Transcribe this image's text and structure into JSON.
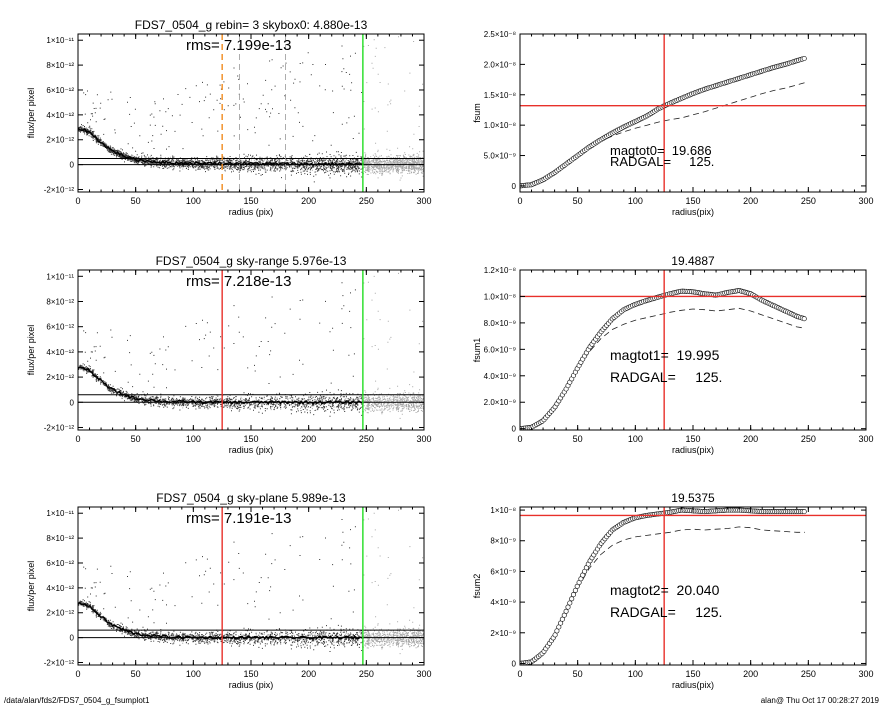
{
  "footer": {
    "left": "/data/alan/fds2/FDS7_0504_g_fsumplot1",
    "right": "alan@  Thu Oct 17 00:28:27 2019"
  },
  "colors": {
    "red": "#e8302a",
    "green": "#22dd22",
    "orange": "#f08a1e",
    "scatter_dark": "#333333",
    "scatter_gray": "#a8a8a8",
    "profile": "#000000"
  },
  "chart_data": [
    {
      "id": "flux-top",
      "type": "scatter",
      "title": "FDS7_0504_g rebin= 3    skybox0:  4.880e-13",
      "annotation": "rms= 7.199e-13",
      "xlabel": "radius (pix)",
      "ylabel": "flux/per pixel",
      "xlim": [
        0,
        300
      ],
      "ylim": [
        -2.2e-12,
        1.05e-11
      ],
      "xticks": [
        0,
        50,
        100,
        150,
        200,
        250,
        300
      ],
      "yticks": [
        -2e-12,
        0,
        2e-12,
        4e-12,
        6e-12,
        8e-12,
        1e-11
      ],
      "ytick_labels": [
        "-2×10⁻¹²",
        "0",
        "2×10⁻¹²",
        "4×10⁻¹²",
        "6×10⁻¹²",
        "8×10⁻¹²",
        "1×10⁻¹¹"
      ],
      "hlines": [
        4.88e-13,
        0
      ],
      "vlines": [
        {
          "x": 125,
          "color": "orange",
          "style": "dashed"
        },
        {
          "x": 140,
          "color": "gray",
          "style": "dashed"
        },
        {
          "x": 180,
          "color": "gray",
          "style": "dashed"
        },
        {
          "x": 247,
          "color": "green",
          "style": "solid"
        }
      ],
      "profile_x": [
        0,
        5,
        10,
        15,
        20,
        25,
        30,
        40,
        50,
        60,
        70,
        80,
        100,
        120,
        150,
        180,
        200,
        247
      ],
      "profile_y": [
        2.9e-12,
        2.8e-12,
        2.6e-12,
        2.2e-12,
        1.8e-12,
        1.4e-12,
        1.1e-12,
        7e-13,
        4e-13,
        3e-13,
        2e-13,
        1.5e-13,
        1e-13,
        1e-13,
        8e-14,
        6e-14,
        5e-14,
        4e-14
      ]
    },
    {
      "id": "fsum-top",
      "type": "line",
      "title": "",
      "annotation_lines": [
        "magtot0=  19.686",
        "RADGAL=     125."
      ],
      "xlabel": "radius(pix)",
      "ylabel": "fsum",
      "xlim": [
        0,
        300
      ],
      "ylim": [
        -1e-09,
        2.5e-08
      ],
      "xticks": [
        0,
        50,
        100,
        150,
        200,
        250,
        300
      ],
      "yticks": [
        0,
        5e-09,
        1e-08,
        1.5e-08,
        2e-08,
        2.5e-08
      ],
      "ytick_labels": [
        "0",
        "5.0×10⁻⁹",
        "1.0×10⁻⁸",
        "1.5×10⁻⁸",
        "2.0×10⁻⁸",
        "2.5×10⁻⁸"
      ],
      "hline": 1.32e-08,
      "vline": 125,
      "x": [
        0,
        10,
        20,
        30,
        40,
        50,
        60,
        70,
        80,
        90,
        100,
        110,
        120,
        130,
        140,
        150,
        160,
        170,
        180,
        190,
        200,
        210,
        220,
        230,
        240,
        247
      ],
      "y": [
        0,
        2e-10,
        1e-09,
        2.2e-09,
        3.6e-09,
        5e-09,
        6.4e-09,
        7.6e-09,
        8.7e-09,
        9.7e-09,
        1.06e-08,
        1.15e-08,
        1.27e-08,
        1.36e-08,
        1.44e-08,
        1.52e-08,
        1.59e-08,
        1.65e-08,
        1.71e-08,
        1.77e-08,
        1.83e-08,
        1.89e-08,
        1.95e-08,
        2e-08,
        2.06e-08,
        2.1e-08
      ],
      "y_dashed": [
        0,
        2e-10,
        1e-09,
        2.2e-09,
        3.6e-09,
        5e-09,
        6.3e-09,
        7.4e-09,
        8.2e-09,
        8.9e-09,
        9.5e-09,
        1e-08,
        1.05e-08,
        1.09e-08,
        1.12e-08,
        1.17e-08,
        1.22e-08,
        1.28e-08,
        1.34e-08,
        1.4e-08,
        1.46e-08,
        1.52e-08,
        1.57e-08,
        1.61e-08,
        1.66e-08,
        1.7e-08
      ]
    },
    {
      "id": "flux-mid",
      "type": "scatter",
      "title": "FDS7_0504_g sky-range  5.976e-13",
      "annotation": "rms= 7.218e-13",
      "xlabel": "radius (pix)",
      "ylabel": "flux/per pixel",
      "xlim": [
        0,
        300
      ],
      "ylim": [
        -2.2e-12,
        1.05e-11
      ],
      "xticks": [
        0,
        50,
        100,
        150,
        200,
        250,
        300
      ],
      "yticks": [
        -2e-12,
        0,
        2e-12,
        4e-12,
        6e-12,
        8e-12,
        1e-11
      ],
      "ytick_labels": [
        "-2×10⁻¹²",
        "0",
        "2×10⁻¹²",
        "4×10⁻¹²",
        "6×10⁻¹²",
        "8×10⁻¹²",
        "1×10⁻¹¹"
      ],
      "hlines": [
        5.976e-13,
        0
      ],
      "vlines": [
        {
          "x": 125,
          "color": "red",
          "style": "solid"
        },
        {
          "x": 247,
          "color": "green",
          "style": "solid"
        }
      ],
      "profile_x": [
        0,
        5,
        10,
        15,
        20,
        25,
        30,
        40,
        50,
        60,
        70,
        80,
        100,
        120,
        150,
        180,
        200,
        247
      ],
      "profile_y": [
        2.8e-12,
        2.7e-12,
        2.5e-12,
        2.1e-12,
        1.7e-12,
        1.3e-12,
        1e-12,
        6e-13,
        3e-13,
        2e-13,
        1e-13,
        5e-14,
        1e-14,
        0,
        0,
        0,
        0,
        0
      ]
    },
    {
      "id": "fsum-mid",
      "type": "line",
      "title": "19.4887",
      "annotation_lines": [
        "magtot1=  19.995",
        "RADGAL=     125."
      ],
      "xlabel": "radius(pix)",
      "ylabel": "fsum1",
      "xlim": [
        0,
        300
      ],
      "ylim": [
        -1e-10,
        1.2e-08
      ],
      "xticks": [
        0,
        50,
        100,
        150,
        200,
        250,
        300
      ],
      "yticks": [
        0,
        2e-09,
        4e-09,
        6e-09,
        8e-09,
        1e-08,
        1.2e-08
      ],
      "ytick_labels": [
        "0",
        "2.0×10⁻⁹",
        "4.0×10⁻⁹",
        "6.0×10⁻⁹",
        "8.0×10⁻⁹",
        "1.0×10⁻⁸",
        "1.2×10⁻⁸"
      ],
      "hline": 1e-08,
      "vline": 125,
      "x": [
        0,
        10,
        20,
        30,
        40,
        50,
        60,
        70,
        80,
        90,
        100,
        110,
        120,
        130,
        140,
        150,
        160,
        170,
        180,
        190,
        200,
        210,
        220,
        230,
        240,
        247
      ],
      "y": [
        0,
        1e-10,
        6e-10,
        1.6e-09,
        3e-09,
        4.6e-09,
        6.1e-09,
        7.3e-09,
        8.3e-09,
        9e-09,
        9.4e-09,
        9.7e-09,
        9.95e-09,
        1.02e-08,
        1.04e-08,
        1.035e-08,
        1.02e-08,
        1.01e-08,
        1.03e-08,
        1.045e-08,
        1.02e-08,
        9.7e-09,
        9.3e-09,
        8.9e-09,
        8.5e-09,
        8.3e-09
      ],
      "y_dashed": [
        0,
        1e-10,
        6e-10,
        1.6e-09,
        3e-09,
        4.5e-09,
        5.8e-09,
        6.8e-09,
        7.5e-09,
        7.9e-09,
        8.2e-09,
        8.4e-09,
        8.6e-09,
        8.8e-09,
        8.95e-09,
        9.05e-09,
        9e-09,
        8.9e-09,
        9e-09,
        9.1e-09,
        8.9e-09,
        8.6e-09,
        8.3e-09,
        8e-09,
        7.7e-09,
        7.6e-09
      ]
    },
    {
      "id": "flux-bottom",
      "type": "scatter",
      "title": "FDS7_0504_g sky-plane  5.989e-13",
      "annotation": "rms= 7.191e-13",
      "xlabel": "radius (pix)",
      "ylabel": "flux/per pixel",
      "xlim": [
        0,
        300
      ],
      "ylim": [
        -2.2e-12,
        1.05e-11
      ],
      "xticks": [
        0,
        50,
        100,
        150,
        200,
        250,
        300
      ],
      "yticks": [
        -2e-12,
        0,
        2e-12,
        4e-12,
        6e-12,
        8e-12,
        1e-11
      ],
      "ytick_labels": [
        "-2×10⁻¹²",
        "0",
        "2×10⁻¹²",
        "4×10⁻¹²",
        "6×10⁻¹²",
        "8×10⁻¹²",
        "1×10⁻¹¹"
      ],
      "hlines": [
        5.989e-13,
        0
      ],
      "vlines": [
        {
          "x": 125,
          "color": "red",
          "style": "solid"
        },
        {
          "x": 247,
          "color": "green",
          "style": "solid"
        }
      ],
      "profile_x": [
        0,
        5,
        10,
        15,
        20,
        25,
        30,
        40,
        50,
        60,
        70,
        80,
        100,
        120,
        150,
        180,
        200,
        247
      ],
      "profile_y": [
        2.8e-12,
        2.7e-12,
        2.5e-12,
        2.1e-12,
        1.7e-12,
        1.3e-12,
        1e-12,
        6e-13,
        3e-13,
        2e-13,
        1e-13,
        5e-14,
        1e-14,
        0,
        0,
        0,
        0,
        0
      ]
    },
    {
      "id": "fsum-bottom",
      "type": "line",
      "title": "19.5375",
      "annotation_lines": [
        "magtot2=  20.040",
        "RADGAL=     125."
      ],
      "xlabel": "radius(pix)",
      "ylabel": "fsum2",
      "xlim": [
        0,
        300
      ],
      "ylim": [
        -1e-10,
        1.02e-08
      ],
      "xticks": [
        0,
        50,
        100,
        150,
        200,
        250,
        300
      ],
      "yticks": [
        0,
        2e-09,
        4e-09,
        6e-09,
        8e-09,
        1e-08
      ],
      "ytick_labels": [
        "0",
        "2×10⁻⁹",
        "4×10⁻⁹",
        "6×10⁻⁹",
        "8×10⁻⁹",
        "1×10⁻⁸"
      ],
      "hline": 9.65e-09,
      "vline": 125,
      "x": [
        0,
        10,
        20,
        30,
        40,
        50,
        60,
        70,
        80,
        90,
        100,
        110,
        120,
        130,
        140,
        150,
        160,
        170,
        180,
        190,
        200,
        210,
        220,
        230,
        240,
        247
      ],
      "y": [
        0,
        1e-10,
        7e-10,
        1.8e-09,
        3.4e-09,
        5.1e-09,
        6.6e-09,
        7.8e-09,
        8.7e-09,
        9.2e-09,
        9.5e-09,
        9.65e-09,
        9.75e-09,
        9.85e-09,
        1e-08,
        9.95e-09,
        9.9e-09,
        9.95e-09,
        1e-08,
        1e-08,
        9.95e-09,
        9.9e-09,
        9.9e-09,
        9.9e-09,
        9.9e-09,
        9.9e-09
      ],
      "y_dashed": [
        0,
        1e-10,
        7e-10,
        1.8e-09,
        3.3e-09,
        4.9e-09,
        6.2e-09,
        7.1e-09,
        7.7e-09,
        8.05e-09,
        8.25e-09,
        8.35e-09,
        8.45e-09,
        8.55e-09,
        8.7e-09,
        8.75e-09,
        8.7e-09,
        8.75e-09,
        8.8e-09,
        8.9e-09,
        8.85e-09,
        8.7e-09,
        8.65e-09,
        8.6e-09,
        8.55e-09,
        8.55e-09
      ]
    }
  ]
}
